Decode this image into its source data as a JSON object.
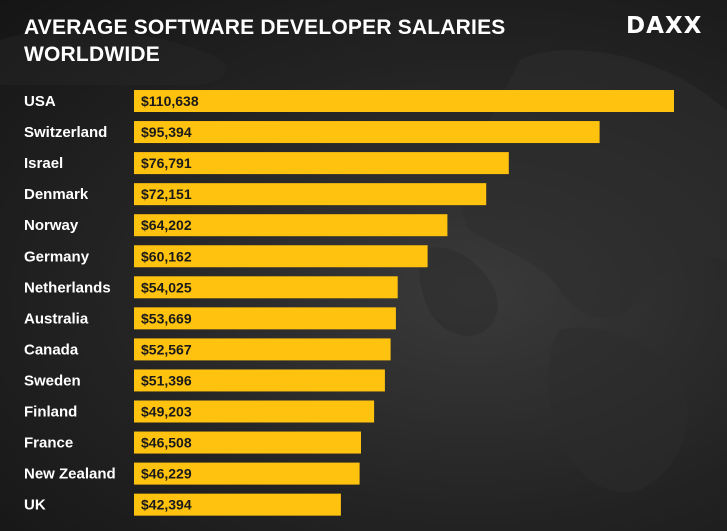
{
  "header": {
    "title": "AVERAGE SOFTWARE DEVELOPER SALARIES WORLDWIDE",
    "logo_text": "DAXX"
  },
  "colors": {
    "bar": "#ffc20e",
    "bar_text": "#1a1a1a",
    "label_text": "#ffffff",
    "background": "#222222"
  },
  "chart_data": {
    "type": "bar",
    "orientation": "horizontal",
    "title": "AVERAGE SOFTWARE DEVELOPER SALARIES WORLDWIDE",
    "xlabel": "",
    "ylabel": "",
    "grid": false,
    "legend": "none",
    "categories": [
      "USA",
      "Switzerland",
      "Israel",
      "Denmark",
      "Norway",
      "Germany",
      "Netherlands",
      "Australia",
      "Canada",
      "Sweden",
      "Finland",
      "France",
      "New Zealand",
      "UK"
    ],
    "values": [
      110638,
      95394,
      76791,
      72151,
      64202,
      60162,
      54025,
      53669,
      52567,
      51396,
      49203,
      46508,
      46229,
      42394
    ],
    "value_labels": [
      "$110,638",
      "$95,394",
      "$76,791",
      "$72,151",
      "$64,202",
      "$60,162",
      "$54,025",
      "$53,669",
      "$52,567",
      "$51,396",
      "$49,203",
      "$46,508",
      "$46,229",
      "$42,394"
    ],
    "xlim": [
      0,
      110638
    ]
  }
}
